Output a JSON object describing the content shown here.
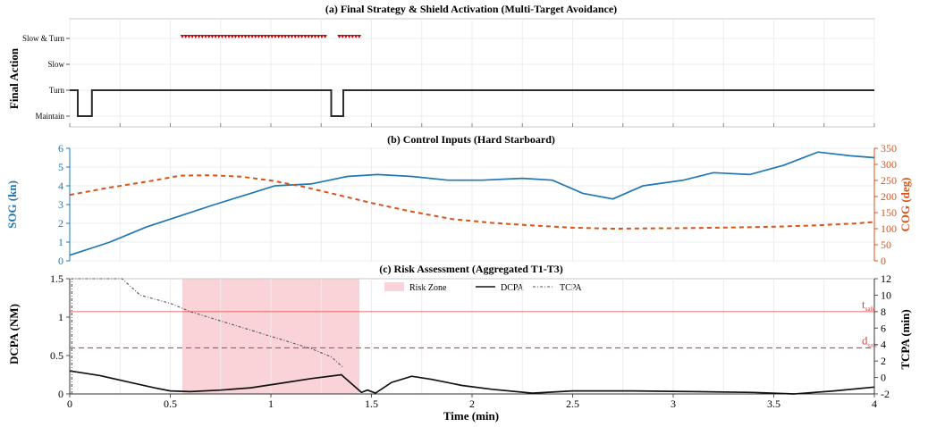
{
  "chart_data": [
    {
      "type": "line",
      "title": "(a) Final Strategy & Shield Activation (Multi-Target Avoidance)",
      "ylabel": "Final Action",
      "xlim": [
        0,
        4
      ],
      "y_categories": [
        "Maintain",
        "Turn",
        "Slow",
        "Slow & Turn"
      ],
      "series": [
        {
          "x": [
            0,
            0.04,
            0.04,
            0.11,
            0.11,
            1.3,
            1.3,
            1.36,
            1.36,
            4
          ],
          "y": [
            1,
            1,
            0,
            0,
            1,
            1,
            0,
            0,
            1,
            1
          ]
        }
      ],
      "shield_markers": [
        {
          "x_start": 0.56,
          "x_end": 1.28,
          "y": 3
        },
        {
          "x_start": 1.34,
          "x_end": 1.44,
          "y": 3
        }
      ],
      "colors": {
        "line": "#2b2b2b",
        "markers": "#cc0000"
      }
    },
    {
      "type": "line",
      "title": "(b) Control Inputs (Hard Starboard)",
      "xlim": [
        0,
        4
      ],
      "y_left": {
        "label": "SOG (kn)",
        "ylim": [
          0,
          6
        ],
        "ticks": [
          0,
          1,
          2,
          3,
          4,
          5,
          6
        ],
        "color": "#1f77b4"
      },
      "y_right": {
        "label": "COG (deg)",
        "ylim": [
          0,
          350
        ],
        "ticks": [
          0,
          50,
          100,
          150,
          200,
          250,
          300,
          350
        ],
        "color": "#d95319"
      },
      "series": [
        {
          "axis": "left",
          "x": [
            0,
            0.2,
            0.38,
            0.55,
            0.72,
            0.9,
            1.02,
            1.2,
            1.38,
            1.53,
            1.7,
            1.88,
            2.05,
            2.25,
            2.4,
            2.55,
            2.7,
            2.85,
            3.05,
            3.2,
            3.38,
            3.55,
            3.72,
            3.88,
            4.0
          ],
          "y": [
            0.3,
            1.0,
            1.8,
            2.4,
            3.0,
            3.6,
            4.0,
            4.1,
            4.5,
            4.6,
            4.5,
            4.3,
            4.3,
            4.4,
            4.3,
            3.6,
            3.3,
            4.0,
            4.3,
            4.7,
            4.6,
            5.1,
            5.8,
            5.6,
            5.5
          ],
          "color": "#1f77b4"
        },
        {
          "axis": "right",
          "x": [
            0,
            0.2,
            0.4,
            0.55,
            0.7,
            0.85,
            1.0,
            1.15,
            1.3,
            1.5,
            1.7,
            1.9,
            2.1,
            2.3,
            2.5,
            2.7,
            2.9,
            3.1,
            3.3,
            3.5,
            3.7,
            3.9,
            4.0
          ],
          "y": [
            205,
            228,
            248,
            265,
            266,
            262,
            250,
            232,
            210,
            180,
            153,
            130,
            118,
            110,
            103,
            100,
            101,
            102,
            104,
            106,
            110,
            116,
            121
          ],
          "color": "#d95319"
        }
      ]
    },
    {
      "type": "line",
      "title": "(c) Risk Assessment (Aggregated T1-T3)",
      "xlabel": "Time (min)",
      "x_ticks": [
        0,
        0.5,
        1,
        1.5,
        2,
        2.5,
        3,
        3.5,
        4
      ],
      "xlim": [
        0,
        4
      ],
      "y_left": {
        "label": "DCPA (NM)",
        "ylim": [
          0,
          1.5
        ],
        "ticks": [
          0,
          0.5,
          1,
          1.5
        ],
        "color": "#111111"
      },
      "y_right": {
        "label": "TCPA (min)",
        "ylim": [
          -2,
          12
        ],
        "ticks": [
          -2,
          0,
          2,
          4,
          6,
          8,
          10,
          12
        ],
        "color": "#111111"
      },
      "risk_zone": {
        "x_start": 0.56,
        "x_end": 1.44
      },
      "thresholds": [
        {
          "name": "t",
          "subscript": "safe",
          "tcpa": 8.0
        },
        {
          "name": "d",
          "subscript": "safe",
          "dcpa": 0.6
        }
      ],
      "legend": [
        "Risk Zone",
        "DCPA",
        "TCPA"
      ],
      "series": [
        {
          "name": "DCPA",
          "axis": "left",
          "x": [
            0,
            0.15,
            0.3,
            0.42,
            0.5,
            0.6,
            0.75,
            0.9,
            1.05,
            1.2,
            1.35,
            1.45,
            1.48,
            1.52,
            1.6,
            1.7,
            1.8,
            1.95,
            2.1,
            2.3,
            2.5,
            2.8,
            3.1,
            3.4,
            3.6,
            3.8,
            4.0
          ],
          "y": [
            0.3,
            0.24,
            0.15,
            0.08,
            0.04,
            0.03,
            0.05,
            0.08,
            0.14,
            0.2,
            0.25,
            0.02,
            0.05,
            0.01,
            0.15,
            0.23,
            0.19,
            0.11,
            0.06,
            0.01,
            0.04,
            0.04,
            0.03,
            0.02,
            0.0,
            0.04,
            0.09
          ],
          "color": "#111111"
        },
        {
          "name": "TCPA",
          "axis": "right",
          "x": [
            0.01,
            0.01,
            0.26,
            0.35,
            0.5,
            0.6,
            0.8,
            1.0,
            1.2,
            1.3,
            1.36
          ],
          "y": [
            -2,
            12,
            12,
            10,
            9.0,
            8.0,
            6.5,
            5.0,
            3.5,
            2.5,
            1.2
          ],
          "color": "#555555"
        }
      ]
    }
  ]
}
